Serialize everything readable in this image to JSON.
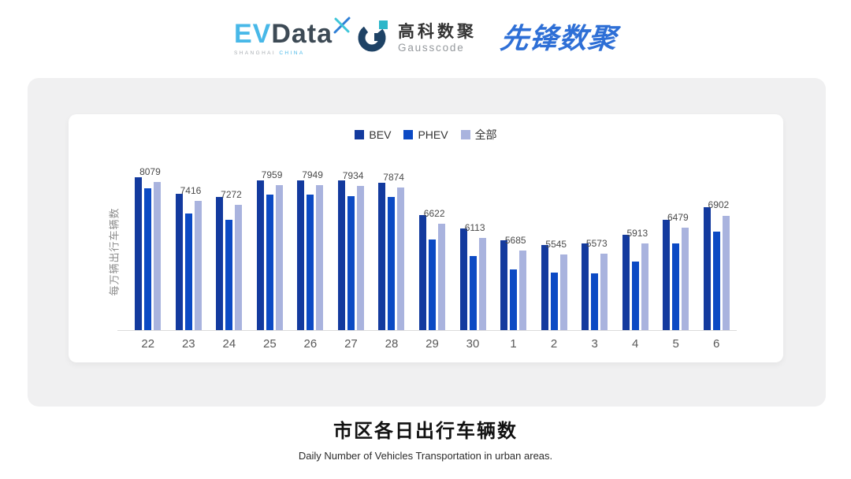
{
  "header": {
    "evdata": {
      "ev": "EV",
      "data": "Data",
      "sub_left": "SHANGHAI",
      "sub_right": "CHINA",
      "ev_color": "#48b8e8",
      "data_color": "#3d4a55"
    },
    "gausscode": {
      "cn": "高科数聚",
      "en": "Gausscode"
    },
    "pioneer": {
      "text": "先锋数聚",
      "color": "#2e6fd6"
    }
  },
  "chart_data": {
    "type": "bar",
    "title": "市区各日出行车辆数",
    "subtitle": "Daily Number of Vehicles Transportation in urban areas.",
    "ylabel": "每万辆出行车辆数",
    "xlabel": "",
    "categories": [
      "22",
      "23",
      "24",
      "25",
      "26",
      "27",
      "28",
      "29",
      "30",
      "1",
      "2",
      "3",
      "4",
      "5",
      "6"
    ],
    "series": [
      {
        "name": "BEV",
        "color": "#133a9e",
        "values": [
          8245,
          7650,
          7540,
          8135,
          8125,
          8125,
          8045,
          6920,
          6440,
          6030,
          5875,
          5940,
          6235,
          6765,
          7195
        ]
      },
      {
        "name": "PHEV",
        "color": "#0c4ac4",
        "values": [
          7850,
          6980,
          6765,
          7620,
          7620,
          7585,
          7560,
          6070,
          5480,
          5015,
          4905,
          4890,
          5300,
          5915,
          6345
        ]
      },
      {
        "name": "全部",
        "color": "#a9b3de",
        "values": [
          8079,
          7416,
          7272,
          7959,
          7949,
          7934,
          7874,
          6622,
          6113,
          5685,
          5545,
          5573,
          5913,
          6479,
          6902
        ]
      }
    ],
    "data_labels_series": "全部",
    "data_labels": [
      8079,
      7416,
      7272,
      7959,
      7949,
      7934,
      7874,
      6622,
      6113,
      5685,
      5545,
      5573,
      5913,
      6479,
      6902
    ],
    "ylim": [
      2900,
      8400
    ],
    "grid": false,
    "legend_position": "top"
  },
  "colors": {
    "panel_bg": "#f0f0f1",
    "card_bg": "#ffffff",
    "axis_line": "#dcdcdc"
  }
}
